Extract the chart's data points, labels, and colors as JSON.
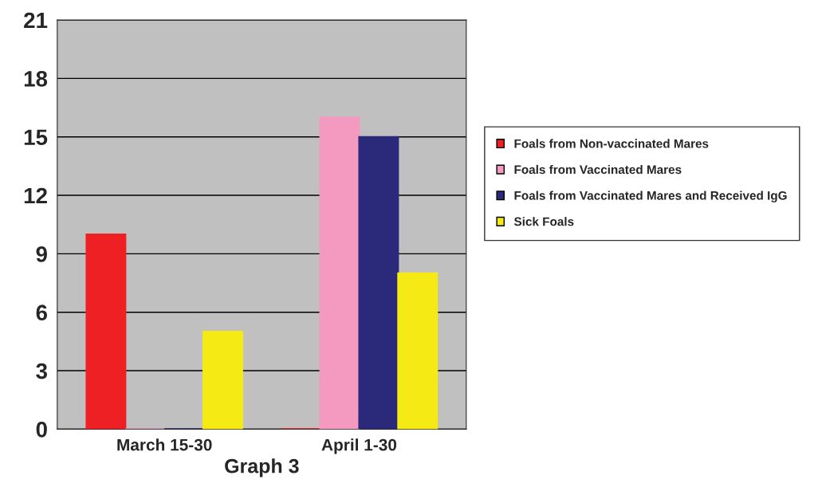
{
  "chart_data": {
    "type": "bar",
    "xlabel": "Graph 3",
    "categories": [
      "March 15-30",
      "April 1-30"
    ],
    "series": [
      {
        "name": "Foals from Non-vaccinated Mares",
        "color": "#ee2024",
        "values": [
          10,
          0
        ]
      },
      {
        "name": "Foals from Vaccinated Mares",
        "color": "#f49ac1",
        "values": [
          0,
          16
        ]
      },
      {
        "name": "Foals from Vaccinated Mares and Received IgG",
        "color": "#2b2a7a",
        "values": [
          0,
          15
        ]
      },
      {
        "name": "Sick Foals",
        "color": "#f5ea14",
        "values": [
          5,
          8
        ]
      }
    ],
    "ylim": [
      0,
      21
    ],
    "yticks": [
      0,
      3,
      6,
      9,
      12,
      15,
      18,
      21
    ],
    "grid": "y",
    "legend": "right"
  }
}
